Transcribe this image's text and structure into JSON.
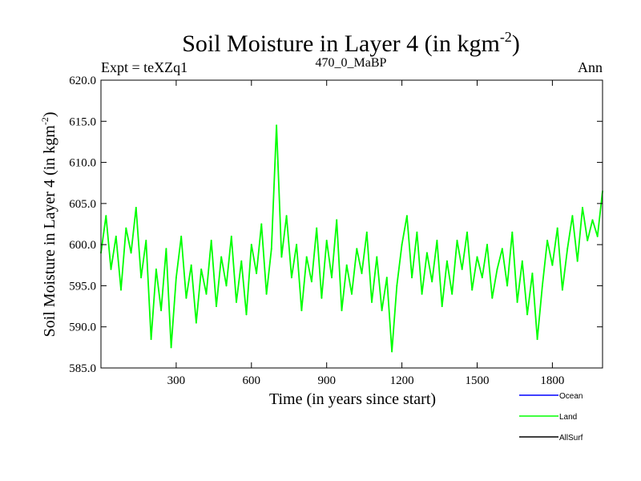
{
  "chart_data": {
    "type": "line",
    "title": "Soil Moisture in Layer 4 (in kgm",
    "title_superscript": "-2",
    "title_close": ")",
    "subtitle_left": "Expt = teXZq1",
    "subtitle_center": "470_0_MaBP",
    "subtitle_right": "Ann",
    "xlabel": "Time (in years since start)",
    "ylabel": "Soil Moisture in Layer 4 (in kgm",
    "ylabel_superscript": "-2",
    "ylabel_close": ")",
    "xlim": [
      0,
      2000
    ],
    "ylim": [
      585.0,
      620.0
    ],
    "xticks": [
      300,
      600,
      900,
      1200,
      1500,
      1800
    ],
    "xtick_labels": [
      "300",
      "600",
      "900",
      "1200",
      "1500",
      "1800"
    ],
    "yticks": [
      585.0,
      590.0,
      595.0,
      600.0,
      605.0,
      610.0,
      615.0,
      620.0
    ],
    "ytick_labels": [
      "585.0",
      "590.0",
      "595.0",
      "600.0",
      "605.0",
      "610.0",
      "615.0",
      "620.0"
    ],
    "legend_position": "bottom-right, below plot",
    "series": [
      {
        "name": "Ocean",
        "color": "#0000ff",
        "x": [],
        "values": []
      },
      {
        "name": "Land",
        "color": "#00ff00",
        "x": [
          0,
          20,
          40,
          60,
          80,
          100,
          120,
          140,
          160,
          180,
          200,
          220,
          240,
          260,
          280,
          300,
          320,
          340,
          360,
          380,
          400,
          420,
          440,
          460,
          480,
          500,
          520,
          540,
          560,
          580,
          600,
          620,
          640,
          660,
          680,
          700,
          720,
          740,
          760,
          780,
          800,
          820,
          840,
          860,
          880,
          900,
          920,
          940,
          960,
          980,
          1000,
          1020,
          1040,
          1060,
          1080,
          1100,
          1120,
          1140,
          1160,
          1180,
          1200,
          1220,
          1240,
          1260,
          1280,
          1300,
          1320,
          1340,
          1360,
          1380,
          1400,
          1420,
          1440,
          1460,
          1480,
          1500,
          1520,
          1540,
          1560,
          1580,
          1600,
          1620,
          1640,
          1660,
          1680,
          1700,
          1720,
          1740,
          1760,
          1780,
          1800,
          1820,
          1840,
          1860,
          1880,
          1900,
          1920,
          1940,
          1960,
          1980,
          2000
        ],
        "values": [
          599.0,
          603.5,
          597.0,
          601.0,
          594.5,
          602.0,
          599.0,
          604.5,
          596.0,
          600.5,
          588.5,
          597.0,
          592.0,
          599.5,
          587.5,
          596.0,
          601.0,
          593.5,
          597.5,
          590.5,
          597.0,
          594.0,
          600.5,
          592.5,
          598.5,
          595.0,
          601.0,
          593.0,
          598.0,
          591.5,
          600.0,
          596.5,
          602.5,
          594.0,
          599.5,
          614.5,
          598.5,
          603.5,
          596.0,
          600.0,
          592.0,
          598.5,
          595.5,
          602.0,
          593.5,
          600.5,
          596.0,
          603.0,
          592.0,
          597.5,
          594.0,
          599.5,
          596.5,
          601.5,
          593.0,
          598.5,
          592.0,
          596.0,
          587.0,
          595.0,
          600.0,
          603.5,
          596.0,
          601.5,
          594.0,
          599.0,
          595.5,
          600.5,
          592.5,
          598.0,
          594.0,
          600.5,
          597.0,
          601.5,
          594.5,
          598.5,
          596.0,
          600.0,
          593.5,
          597.0,
          599.5,
          595.0,
          601.5,
          593.0,
          598.0,
          591.5,
          596.5,
          588.5,
          595.0,
          600.5,
          597.5,
          602.0,
          594.5,
          599.5,
          603.5,
          598.0,
          604.5,
          600.5,
          603.0,
          601.0,
          606.5
        ]
      },
      {
        "name": "AllSurf",
        "color": "#000000",
        "x": [],
        "values": []
      }
    ]
  }
}
